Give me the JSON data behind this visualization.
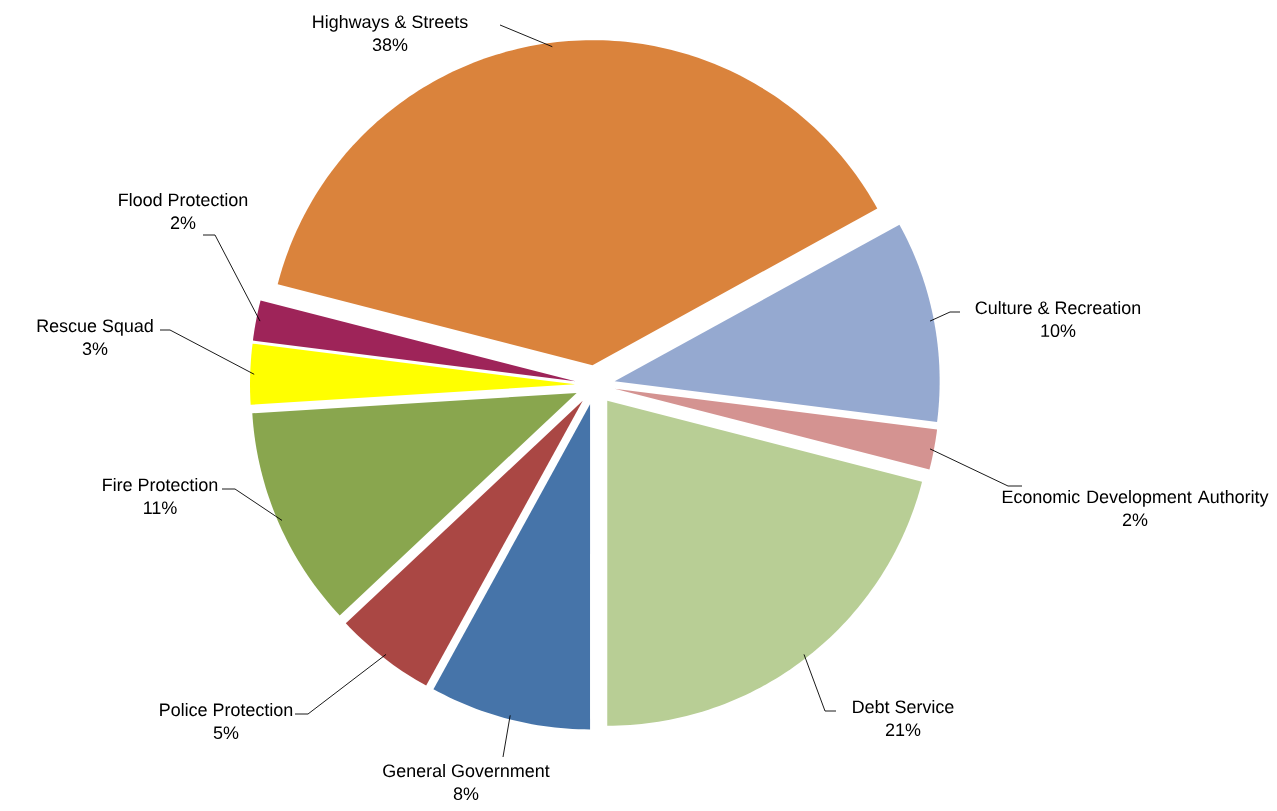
{
  "chart_data": {
    "type": "pie",
    "categories": [
      "General Government",
      "Police Protection",
      "Fire Protection",
      "Rescue Squad",
      "Flood Protection",
      "Highways & Streets",
      "Culture & Recreation",
      "Economic Development Authority",
      "Debt Service"
    ],
    "values": [
      8,
      5,
      11,
      3,
      2,
      38,
      10,
      2,
      21
    ],
    "value_labels": [
      "8%",
      "5%",
      "11%",
      "3%",
      "2%",
      "38%",
      "10%",
      "2%",
      "21%"
    ],
    "colors": [
      "#4674a9",
      "#aa4744",
      "#89a64e",
      "#ffff00",
      "#9e2459",
      "#da833c",
      "#95a9d0",
      "#d49391",
      "#b8ce95"
    ]
  }
}
